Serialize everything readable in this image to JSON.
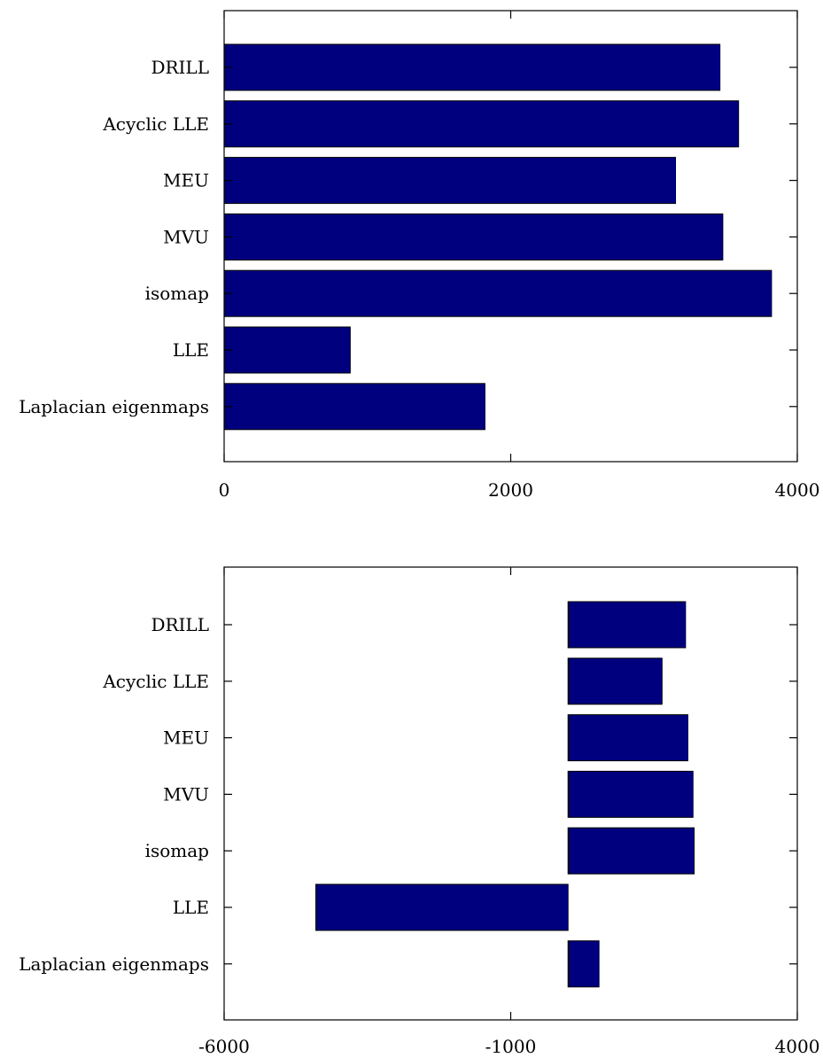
{
  "chart_data": [
    {
      "type": "bar",
      "orientation": "horizontal",
      "categories": [
        "DRILL",
        "Acyclic LLE",
        "MEU",
        "MVU",
        "isomap",
        "LLE",
        "Laplacian eigenmaps"
      ],
      "values": [
        3460,
        3590,
        3150,
        3480,
        3820,
        880,
        1820
      ],
      "xlim": [
        0,
        4000
      ],
      "xticks": [
        "0",
        "2000",
        "4000"
      ],
      "color": "#00007f",
      "grid": false
    },
    {
      "type": "bar",
      "orientation": "horizontal",
      "categories": [
        "DRILL",
        "Acyclic LLE",
        "MEU",
        "MVU",
        "isomap",
        "LLE",
        "Laplacian eigenmaps"
      ],
      "values": [
        2050,
        1640,
        2090,
        2180,
        2200,
        -4400,
        540
      ],
      "bar_base": 0,
      "xlim": [
        -6000,
        4000
      ],
      "xticks": [
        "-6000",
        "-1000",
        "4000"
      ],
      "color": "#00007f",
      "grid": false
    }
  ]
}
